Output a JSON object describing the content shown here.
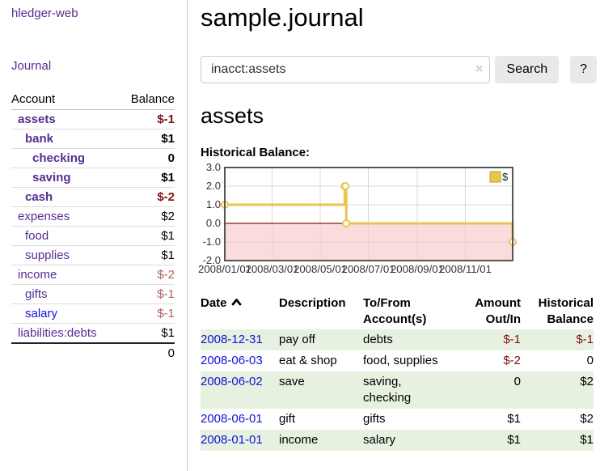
{
  "colors": {
    "link_purple": "#552e90",
    "link_blue": "#1212dd",
    "negative_dark_red": "#7e1414",
    "negative_rose": "#b36161",
    "row_green": "#e6f1e0",
    "chart_gold": "#e9c64d",
    "chart_gold_dark": "#bfa233",
    "chart_negative_fill": "#fadcdc",
    "chart_zero_line": "#8b1717",
    "chart_border": "#555555",
    "chart_grid": "#d8d8d8"
  },
  "sidebar": {
    "app_title": "hledger-web",
    "journal_label": "Journal",
    "accounts_header": {
      "account": "Account",
      "balance": "Balance"
    },
    "accounts": [
      {
        "name": "assets",
        "indent": 1,
        "bold": true,
        "link": "purple",
        "balance": "$-1",
        "balance_style": "neg-dark"
      },
      {
        "name": "bank",
        "indent": 2,
        "bold": true,
        "link": "purple",
        "balance": "$1",
        "balance_style": "pos"
      },
      {
        "name": "checking",
        "indent": 3,
        "bold": true,
        "link": "purple",
        "balance": "0",
        "balance_style": "pos"
      },
      {
        "name": "saving",
        "indent": 3,
        "bold": true,
        "link": "purple",
        "balance": "$1",
        "balance_style": "pos"
      },
      {
        "name": "cash",
        "indent": 2,
        "bold": true,
        "link": "purple",
        "balance": "$-2",
        "balance_style": "neg-dark"
      },
      {
        "name": "expenses",
        "indent": 1,
        "bold": false,
        "link": "purple",
        "balance": "$2",
        "balance_style": "pos"
      },
      {
        "name": "food",
        "indent": 2,
        "bold": false,
        "link": "purple",
        "balance": "$1",
        "balance_style": "pos"
      },
      {
        "name": "supplies",
        "indent": 2,
        "bold": false,
        "link": "purple",
        "balance": "$1",
        "balance_style": "pos"
      },
      {
        "name": "income",
        "indent": 1,
        "bold": false,
        "link": "purple",
        "balance": "$-2",
        "balance_style": "neg-rose"
      },
      {
        "name": "gifts",
        "indent": 2,
        "bold": false,
        "link": "purple",
        "balance": "$-1",
        "balance_style": "neg-rose"
      },
      {
        "name": "salary",
        "indent": 2,
        "bold": false,
        "link": "blue",
        "balance": "$-1",
        "balance_style": "neg-rose"
      },
      {
        "name": "liabilities:debts",
        "indent": 1,
        "bold": false,
        "link": "purple",
        "balance": "$1",
        "balance_style": "pos"
      }
    ],
    "total": "0"
  },
  "header": {
    "title": "sample.journal"
  },
  "search": {
    "value": "inacct:assets",
    "clear_icon": "×",
    "button_label": "Search",
    "help_label": "?"
  },
  "main": {
    "account_heading": "assets",
    "chart_title": "Historical Balance:"
  },
  "chart_data": {
    "type": "line",
    "step": true,
    "title": "Historical Balance",
    "legend": "$",
    "legend_position": "top-right",
    "ylim": [
      -2,
      3
    ],
    "y_ticks": [
      "3.0",
      "2.0",
      "1.0",
      "0.0",
      "-1.0",
      "-2.0"
    ],
    "x_ticks": [
      "2008/01/01",
      "2008/03/01",
      "2008/05/01",
      "2008/07/01",
      "2008/09/01",
      "2008/11/01"
    ],
    "x_range": [
      "2008-01-01",
      "2008-12-31"
    ],
    "grid": true,
    "negative_region_shaded": true,
    "series": [
      {
        "name": "$",
        "points": [
          [
            "2008-01-01",
            1
          ],
          [
            "2008-06-01",
            2
          ],
          [
            "2008-06-02",
            2
          ],
          [
            "2008-06-03",
            0
          ],
          [
            "2008-12-31",
            -1
          ]
        ]
      }
    ]
  },
  "transactions": {
    "headers": {
      "date": "Date",
      "description": "Description",
      "tofrom_line1": "To/From",
      "tofrom_line2": "Account(s)",
      "amount_line1": "Amount",
      "amount_line2": "Out/In",
      "balance_line1": "Historical",
      "balance_line2": "Balance"
    },
    "sort": "date-ascending",
    "rows": [
      {
        "date": "2008-12-31",
        "description": "pay off",
        "accounts": "debts",
        "amount": "$-1",
        "amount_neg": true,
        "balance": "$-1",
        "balance_neg": true,
        "shaded": true
      },
      {
        "date": "2008-06-03",
        "description": "eat & shop",
        "accounts": "food, supplies",
        "amount": "$-2",
        "amount_neg": true,
        "balance": "0",
        "balance_neg": false,
        "shaded": false
      },
      {
        "date": "2008-06-02",
        "description": "save",
        "accounts": "saving, checking",
        "amount": "0",
        "amount_neg": false,
        "balance": "$2",
        "balance_neg": false,
        "shaded": true
      },
      {
        "date": "2008-06-01",
        "description": "gift",
        "accounts": "gifts",
        "amount": "$1",
        "amount_neg": false,
        "balance": "$2",
        "balance_neg": false,
        "shaded": false
      },
      {
        "date": "2008-01-01",
        "description": "income",
        "accounts": "salary",
        "amount": "$1",
        "amount_neg": false,
        "balance": "$1",
        "balance_neg": false,
        "shaded": true
      }
    ]
  }
}
